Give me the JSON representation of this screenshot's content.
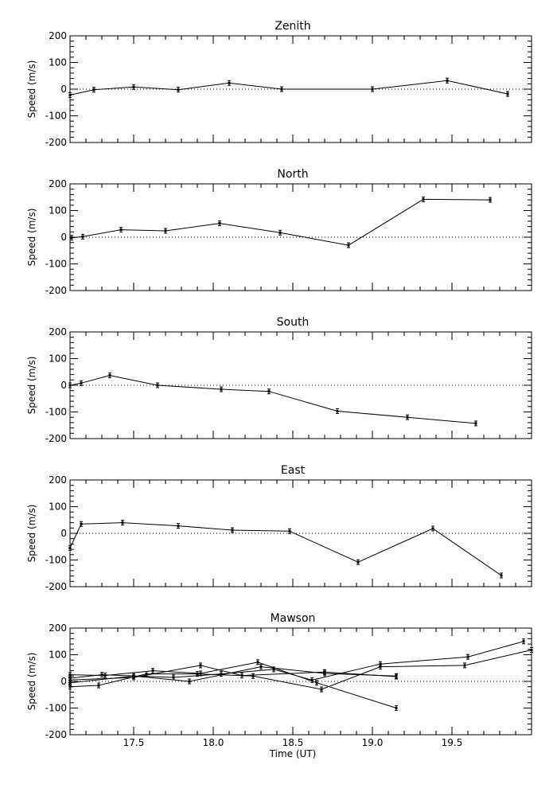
{
  "figure": {
    "x_axis_label": "Time (UT)",
    "y_axis_label": "Speed (m/s)"
  },
  "chart_data": [
    {
      "type": "line",
      "title": "Zenith",
      "ylabel": "Speed (m/s)",
      "xlabel": "",
      "xlim": [
        17.1,
        20.0
      ],
      "ylim": [
        -200,
        200
      ],
      "yticks": [
        -200,
        -100,
        0,
        100,
        200
      ],
      "xticks": [
        17.5,
        18.0,
        18.5,
        19.0,
        19.5
      ],
      "x_tick_labels_shown": false,
      "zero_line": "dotted",
      "series": [
        {
          "x": [
            17.1,
            17.25,
            17.5,
            17.78,
            18.1,
            18.43,
            19.0,
            19.47,
            19.85
          ],
          "y": [
            -22,
            -2,
            8,
            -2,
            23,
            0,
            0,
            32,
            -18
          ]
        }
      ]
    },
    {
      "type": "line",
      "title": "North",
      "ylabel": "Speed (m/s)",
      "xlabel": "",
      "xlim": [
        17.1,
        20.0
      ],
      "ylim": [
        -200,
        200
      ],
      "yticks": [
        -200,
        -100,
        0,
        100,
        200
      ],
      "xticks": [
        17.5,
        18.0,
        18.5,
        19.0,
        19.5
      ],
      "x_tick_labels_shown": false,
      "zero_line": "dotted",
      "series": [
        {
          "x": [
            17.11,
            17.18,
            17.42,
            17.7,
            18.04,
            18.42,
            18.85,
            19.32,
            19.74
          ],
          "y": [
            -2,
            2,
            28,
            24,
            52,
            17,
            -30,
            142,
            140
          ]
        }
      ]
    },
    {
      "type": "line",
      "title": "South",
      "ylabel": "Speed (m/s)",
      "xlabel": "",
      "xlim": [
        17.1,
        20.0
      ],
      "ylim": [
        -200,
        200
      ],
      "yticks": [
        -200,
        -100,
        0,
        100,
        200
      ],
      "xticks": [
        17.5,
        18.0,
        18.5,
        19.0,
        19.5
      ],
      "x_tick_labels_shown": false,
      "zero_line": "dotted",
      "series": [
        {
          "x": [
            17.1,
            17.17,
            17.35,
            17.65,
            18.05,
            18.35,
            18.78,
            19.22,
            19.65
          ],
          "y": [
            0,
            8,
            37,
            0,
            -15,
            -23,
            -97,
            -120,
            -143
          ]
        }
      ]
    },
    {
      "type": "line",
      "title": "East",
      "ylabel": "Speed (m/s)",
      "xlabel": "",
      "xlim": [
        17.1,
        20.0
      ],
      "ylim": [
        -200,
        200
      ],
      "yticks": [
        -200,
        -100,
        0,
        100,
        200
      ],
      "xticks": [
        17.5,
        18.0,
        18.5,
        19.0,
        19.5
      ],
      "x_tick_labels_shown": false,
      "zero_line": "dotted",
      "series": [
        {
          "x": [
            17.1,
            17.17,
            17.43,
            17.78,
            18.12,
            18.48,
            18.91,
            19.38,
            19.81
          ],
          "y": [
            -55,
            35,
            40,
            28,
            12,
            8,
            -108,
            18,
            -158
          ]
        }
      ]
    },
    {
      "type": "line",
      "title": "Mawson",
      "ylabel": "Speed (m/s)",
      "xlabel": "Time (UT)",
      "xlim": [
        17.1,
        20.0
      ],
      "ylim": [
        -200,
        200
      ],
      "yticks": [
        -200,
        -100,
        0,
        100,
        200
      ],
      "xticks": [
        17.5,
        18.0,
        18.5,
        19.0,
        19.5
      ],
      "xtick_labels": [
        "17.5",
        "18.0",
        "18.5",
        "19.0",
        "19.5"
      ],
      "x_tick_labels_shown": true,
      "zero_line": "dotted",
      "series": [
        {
          "x": [
            17.1,
            17.28,
            17.58,
            17.9,
            18.25,
            18.68,
            19.05,
            19.58,
            20.0
          ],
          "y": [
            -20,
            -15,
            28,
            28,
            20,
            -30,
            55,
            60,
            118
          ]
        },
        {
          "x": [
            17.1,
            17.3,
            17.75,
            18.05,
            18.38,
            18.62,
            19.05,
            19.6,
            19.95
          ],
          "y": [
            12,
            25,
            15,
            28,
            45,
            5,
            65,
            92,
            150
          ]
        },
        {
          "x": [
            17.1,
            17.32,
            17.62,
            17.92,
            18.28,
            18.65,
            19.15
          ],
          "y": [
            25,
            22,
            40,
            30,
            72,
            -5,
            -100
          ]
        },
        {
          "x": [
            17.1,
            17.5,
            17.92,
            18.18,
            18.7,
            19.15
          ],
          "y": [
            5,
            15,
            60,
            22,
            35,
            18
          ]
        },
        {
          "x": [
            17.1,
            17.5,
            17.85,
            18.3,
            18.7,
            19.15
          ],
          "y": [
            -5,
            20,
            0,
            55,
            30,
            20
          ]
        }
      ]
    }
  ]
}
